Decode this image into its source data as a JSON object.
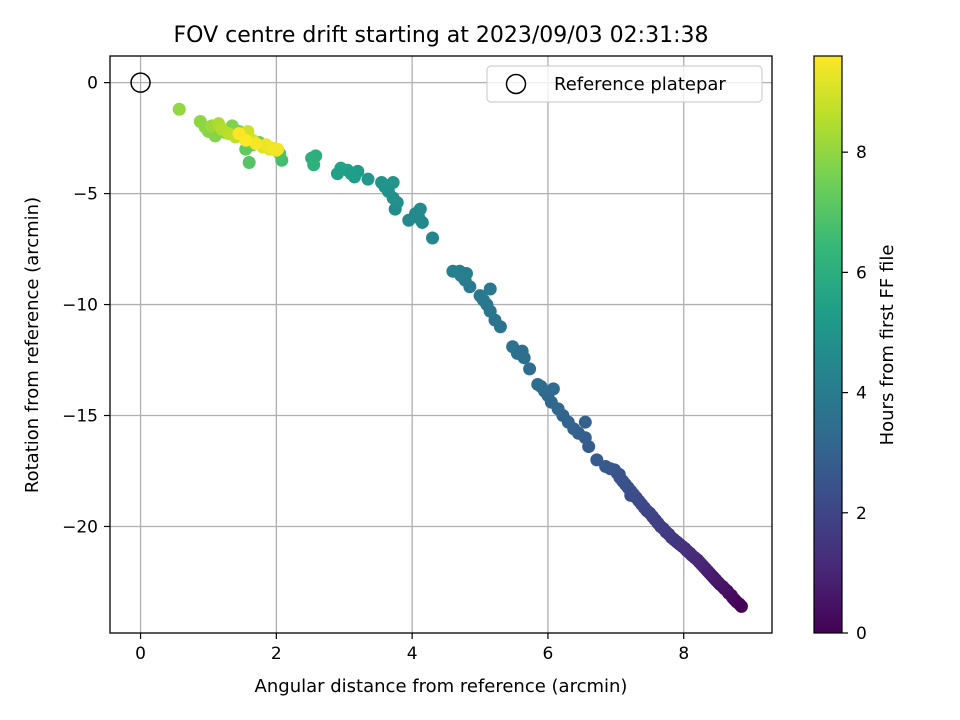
{
  "chart_data": {
    "type": "scatter",
    "title": "FOV centre drift starting at 2023/09/03 02:31:38",
    "xlabel": "Angular distance from reference (arcmin)",
    "ylabel": "Rotation from reference (arcmin)",
    "xlim": [
      -0.45,
      9.3
    ],
    "ylim": [
      -24.8,
      1.2
    ],
    "xticks": [
      0,
      2,
      4,
      6,
      8
    ],
    "yticks": [
      0,
      -5,
      -10,
      -15,
      -20
    ],
    "xtick_labels": [
      "0",
      "2",
      "4",
      "6",
      "8"
    ],
    "ytick_labels": [
      "0",
      "−5",
      "−10",
      "−15",
      "−20"
    ],
    "grid": true,
    "legend": {
      "position": "top-right",
      "entries": [
        {
          "label": "Reference platepar",
          "marker": "open-circle"
        }
      ]
    },
    "reference_point": {
      "x": 0,
      "y": 0
    },
    "colorbar": {
      "label": "Hours from first FF file",
      "colormap": "viridis",
      "range": [
        0,
        9.6
      ],
      "ticks": [
        0,
        2,
        4,
        6,
        8
      ],
      "tick_labels": [
        "0",
        "2",
        "4",
        "6",
        "8"
      ]
    },
    "colors": {
      "viridis": [
        "#440154",
        "#482878",
        "#3e4989",
        "#31688e",
        "#26828e",
        "#1f9e89",
        "#35b779",
        "#6ece58",
        "#b5de2b",
        "#fde725"
      ]
    },
    "points": [
      [
        8.85,
        -23.6,
        0.0
      ],
      [
        8.82,
        -23.5,
        0.05
      ],
      [
        8.78,
        -23.4,
        0.1
      ],
      [
        8.75,
        -23.3,
        0.15
      ],
      [
        8.72,
        -23.2,
        0.2
      ],
      [
        8.7,
        -23.1,
        0.25
      ],
      [
        8.66,
        -23.0,
        0.3
      ],
      [
        8.64,
        -22.9,
        0.35
      ],
      [
        8.6,
        -22.8,
        0.4
      ],
      [
        8.57,
        -22.7,
        0.45
      ],
      [
        8.53,
        -22.6,
        0.5
      ],
      [
        8.5,
        -22.5,
        0.55
      ],
      [
        8.47,
        -22.4,
        0.6
      ],
      [
        8.44,
        -22.3,
        0.65
      ],
      [
        8.41,
        -22.2,
        0.7
      ],
      [
        8.38,
        -22.1,
        0.75
      ],
      [
        8.35,
        -22.0,
        0.8
      ],
      [
        8.32,
        -21.9,
        0.85
      ],
      [
        8.29,
        -21.8,
        0.9
      ],
      [
        8.26,
        -21.7,
        0.95
      ],
      [
        8.23,
        -21.6,
        1.0
      ],
      [
        8.2,
        -21.5,
        1.05
      ],
      [
        8.16,
        -21.4,
        1.1
      ],
      [
        8.12,
        -21.3,
        1.15
      ],
      [
        8.09,
        -21.2,
        1.2
      ],
      [
        8.05,
        -21.1,
        1.25
      ],
      [
        8.02,
        -21.0,
        1.3
      ],
      [
        7.98,
        -20.9,
        1.35
      ],
      [
        7.94,
        -20.8,
        1.4
      ],
      [
        7.9,
        -20.7,
        1.45
      ],
      [
        7.86,
        -20.6,
        1.5
      ],
      [
        7.82,
        -20.5,
        1.55
      ],
      [
        7.78,
        -20.35,
        1.6
      ],
      [
        7.74,
        -20.25,
        1.65
      ],
      [
        7.7,
        -20.1,
        1.7
      ],
      [
        7.66,
        -20.0,
        1.75
      ],
      [
        7.62,
        -19.85,
        1.8
      ],
      [
        7.58,
        -19.7,
        1.85
      ],
      [
        7.54,
        -19.55,
        1.9
      ],
      [
        7.5,
        -19.4,
        1.95
      ],
      [
        7.46,
        -19.3,
        2.0
      ],
      [
        7.42,
        -19.15,
        2.05
      ],
      [
        7.38,
        -19.0,
        2.1
      ],
      [
        7.34,
        -18.85,
        2.15
      ],
      [
        7.3,
        -18.7,
        2.2
      ],
      [
        7.26,
        -18.55,
        2.25
      ],
      [
        7.22,
        -18.4,
        2.3
      ],
      [
        7.18,
        -18.25,
        2.35
      ],
      [
        7.14,
        -18.1,
        2.4
      ],
      [
        7.1,
        -17.95,
        2.45
      ],
      [
        7.06,
        -17.8,
        2.5
      ],
      [
        7.02,
        -17.6,
        2.55
      ],
      [
        6.98,
        -17.45,
        2.6
      ],
      [
        6.92,
        -17.4,
        2.65
      ],
      [
        6.85,
        -17.3,
        2.7
      ],
      [
        6.72,
        -17.0,
        2.75
      ],
      [
        7.22,
        -18.6,
        2.3
      ],
      [
        7.05,
        -17.65,
        2.5
      ],
      [
        6.6,
        -16.4,
        2.8
      ],
      [
        6.55,
        -16.0,
        2.85
      ],
      [
        6.45,
        -15.8,
        2.9
      ],
      [
        6.38,
        -15.6,
        2.95
      ],
      [
        6.55,
        -15.3,
        3.0
      ],
      [
        6.3,
        -15.3,
        3.05
      ],
      [
        6.22,
        -15.0,
        3.1
      ],
      [
        6.15,
        -14.7,
        3.15
      ],
      [
        6.05,
        -14.4,
        3.2
      ],
      [
        6.0,
        -14.1,
        3.25
      ],
      [
        5.95,
        -13.9,
        3.3
      ],
      [
        5.9,
        -13.7,
        3.35
      ],
      [
        5.85,
        -13.6,
        3.4
      ],
      [
        6.08,
        -13.8,
        3.3
      ],
      [
        5.73,
        -12.9,
        3.45
      ],
      [
        5.65,
        -12.4,
        3.5
      ],
      [
        5.55,
        -12.2,
        3.55
      ],
      [
        5.48,
        -11.9,
        3.6
      ],
      [
        5.62,
        -12.1,
        3.5
      ],
      [
        5.3,
        -11.0,
        3.65
      ],
      [
        5.22,
        -10.7,
        3.7
      ],
      [
        5.15,
        -10.3,
        3.75
      ],
      [
        5.1,
        -10.0,
        3.8
      ],
      [
        5.05,
        -9.8,
        3.85
      ],
      [
        5.0,
        -9.6,
        3.9
      ],
      [
        5.15,
        -9.3,
        3.9
      ],
      [
        4.85,
        -9.2,
        3.95
      ],
      [
        4.78,
        -8.9,
        4.0
      ],
      [
        4.72,
        -8.7,
        4.05
      ],
      [
        4.8,
        -8.6,
        4.1
      ],
      [
        4.7,
        -8.5,
        4.15
      ],
      [
        4.6,
        -8.5,
        4.2
      ],
      [
        4.3,
        -7.0,
        4.4
      ],
      [
        4.15,
        -6.3,
        4.5
      ],
      [
        4.1,
        -6.1,
        4.55
      ],
      [
        4.05,
        -5.9,
        4.6
      ],
      [
        3.95,
        -6.2,
        4.55
      ],
      [
        4.12,
        -5.7,
        4.6
      ],
      [
        3.75,
        -5.7,
        4.7
      ],
      [
        3.78,
        -5.4,
        4.75
      ],
      [
        3.72,
        -5.2,
        4.8
      ],
      [
        3.65,
        -4.9,
        4.85
      ],
      [
        3.6,
        -4.7,
        4.9
      ],
      [
        3.72,
        -4.5,
        4.95
      ],
      [
        3.55,
        -4.5,
        5.0
      ],
      [
        3.35,
        -4.35,
        5.1
      ],
      [
        3.15,
        -4.25,
        5.2
      ],
      [
        3.2,
        -4.0,
        5.3
      ],
      [
        3.05,
        -3.95,
        5.4
      ],
      [
        2.95,
        -3.85,
        5.5
      ],
      [
        2.9,
        -4.1,
        5.45
      ],
      [
        3.1,
        -4.1,
        5.35
      ],
      [
        2.58,
        -3.3,
        6.0
      ],
      [
        2.52,
        -3.4,
        6.05
      ],
      [
        2.55,
        -3.7,
        6.1
      ],
      [
        2.08,
        -3.5,
        6.7
      ],
      [
        2.05,
        -3.2,
        6.8
      ],
      [
        1.6,
        -3.6,
        7.0
      ],
      [
        1.55,
        -3.0,
        7.2
      ],
      [
        1.65,
        -2.8,
        7.3
      ],
      [
        1.75,
        -2.7,
        7.4
      ],
      [
        1.6,
        -2.5,
        7.5
      ],
      [
        1.45,
        -2.2,
        7.6
      ],
      [
        1.35,
        -1.95,
        7.7
      ],
      [
        1.25,
        -2.25,
        7.75
      ],
      [
        1.1,
        -2.4,
        7.8
      ],
      [
        1.0,
        -2.2,
        7.85
      ],
      [
        0.95,
        -2.0,
        7.9
      ],
      [
        0.88,
        -1.75,
        7.95
      ],
      [
        0.57,
        -1.2,
        8.0
      ],
      [
        1.05,
        -1.95,
        8.2
      ],
      [
        1.15,
        -1.85,
        8.4
      ],
      [
        1.2,
        -2.1,
        8.5
      ],
      [
        1.3,
        -2.3,
        8.6
      ],
      [
        1.4,
        -2.45,
        8.7
      ],
      [
        1.52,
        -2.4,
        8.8
      ],
      [
        1.58,
        -2.2,
        8.9
      ],
      [
        1.65,
        -2.6,
        9.0
      ],
      [
        1.8,
        -2.9,
        9.1
      ],
      [
        1.9,
        -3.0,
        9.2
      ],
      [
        2.0,
        -3.05,
        9.3
      ],
      [
        1.85,
        -2.8,
        9.35
      ],
      [
        1.95,
        -2.95,
        9.4
      ],
      [
        2.02,
        -3.0,
        9.45
      ],
      [
        1.7,
        -2.75,
        9.5
      ],
      [
        1.55,
        -2.6,
        9.55
      ],
      [
        1.45,
        -2.3,
        9.6
      ]
    ]
  }
}
